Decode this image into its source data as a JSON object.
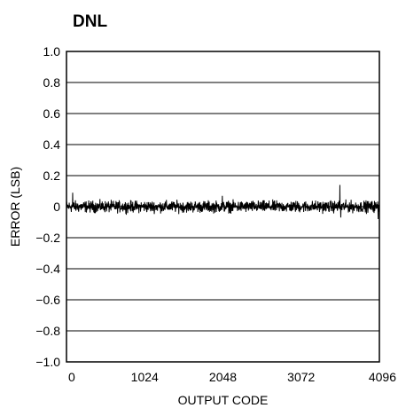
{
  "chart_data": {
    "type": "line",
    "title": "DNL",
    "xlabel": "OUTPUT CODE",
    "ylabel": "ERROR (LSB)",
    "xlim": [
      0,
      4096
    ],
    "ylim": [
      -1.0,
      1.0
    ],
    "x_ticks": [
      0,
      1024,
      2048,
      3072,
      4096
    ],
    "x_tick_labels": [
      "0",
      "1024",
      "2048",
      "3072",
      "4096"
    ],
    "y_ticks": [
      1.0,
      0.8,
      0.6,
      0.4,
      0.2,
      0,
      -0.2,
      -0.4,
      -0.6,
      -0.8,
      -1.0
    ],
    "y_tick_labels": [
      "1.0",
      "0.8",
      "0.6",
      "0.4",
      "0.2",
      "0",
      "−0.2",
      "−0.4",
      "−0.6",
      "−0.8",
      "−1.0"
    ],
    "grid": "horizontal",
    "series": [
      {
        "color": "#000000",
        "x_start": 0,
        "x_end": 4096,
        "baseline": 0,
        "noise_band": [
          -0.05,
          0.05
        ],
        "peaks": [
          {
            "x": 80,
            "y": 0.09
          },
          {
            "x": 2040,
            "y": 0.07
          },
          {
            "x": 3580,
            "y": 0.14
          },
          {
            "x": 3590,
            "y": -0.07
          },
          {
            "x": 4080,
            "y": -0.08
          }
        ]
      }
    ]
  }
}
